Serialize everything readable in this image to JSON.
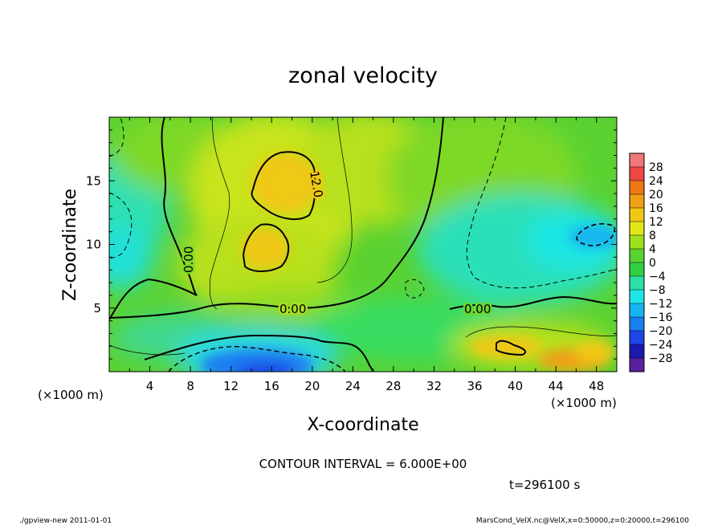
{
  "chart_data": {
    "type": "heatmap",
    "title": "zonal velocity",
    "xlabel": "X-coordinate",
    "ylabel": "Z-coordinate",
    "x_unit": "(×1000 m)",
    "y_unit": "(×1000 m)",
    "xlim": [
      0,
      50
    ],
    "ylim": [
      0,
      20
    ],
    "x_ticks": [
      4,
      8,
      12,
      16,
      20,
      24,
      28,
      32,
      36,
      40,
      44,
      48
    ],
    "y_ticks": [
      5,
      10,
      15
    ],
    "contour_interval_text": "CONTOUR INTERVAL = 6.000E+00",
    "time_text": "t=296100 s",
    "contour_labels": [
      "0.00",
      "0.00",
      "0.00",
      "12.0"
    ],
    "colorbar": {
      "levels": [
        -32,
        -28,
        -24,
        -20,
        -16,
        -12,
        -8,
        -4,
        0,
        4,
        8,
        12,
        16,
        20,
        24,
        28,
        32
      ],
      "tick_labels": [
        "28",
        "24",
        "20",
        "16",
        "12",
        "8",
        "4",
        "0",
        "−4",
        "−8",
        "−12",
        "−16",
        "−20",
        "−24",
        "−28"
      ],
      "colors": [
        "#5b1fa0",
        "#1a1ab0",
        "#1e46e6",
        "#1a7ef0",
        "#18b4f0",
        "#1ee6e6",
        "#2ce0a8",
        "#30d040",
        "#5ad232",
        "#9ee01e",
        "#e0e61a",
        "#f0c814",
        "#f0a014",
        "#f07814",
        "#f04646",
        "#f07878"
      ]
    },
    "field_samples": [
      {
        "x": 4,
        "z": 18,
        "u": 2
      },
      {
        "x": 16,
        "z": 15,
        "u": 13
      },
      {
        "x": 17,
        "z": 10,
        "u": 12
      },
      {
        "x": 18,
        "z": 0.5,
        "u": -20
      },
      {
        "x": 34,
        "z": 16,
        "u": 6
      },
      {
        "x": 44,
        "z": 11,
        "u": -10
      },
      {
        "x": 46,
        "z": 1.5,
        "u": 13
      },
      {
        "x": 30,
        "z": 3,
        "u": -2
      },
      {
        "x": 1,
        "z": 10,
        "u": -8
      }
    ]
  },
  "footer": {
    "left": "./gpview-new  2011-01-01",
    "right": "MarsCond_VelX.nc@VelX,x=0:50000,z=0:20000,t=296100"
  }
}
